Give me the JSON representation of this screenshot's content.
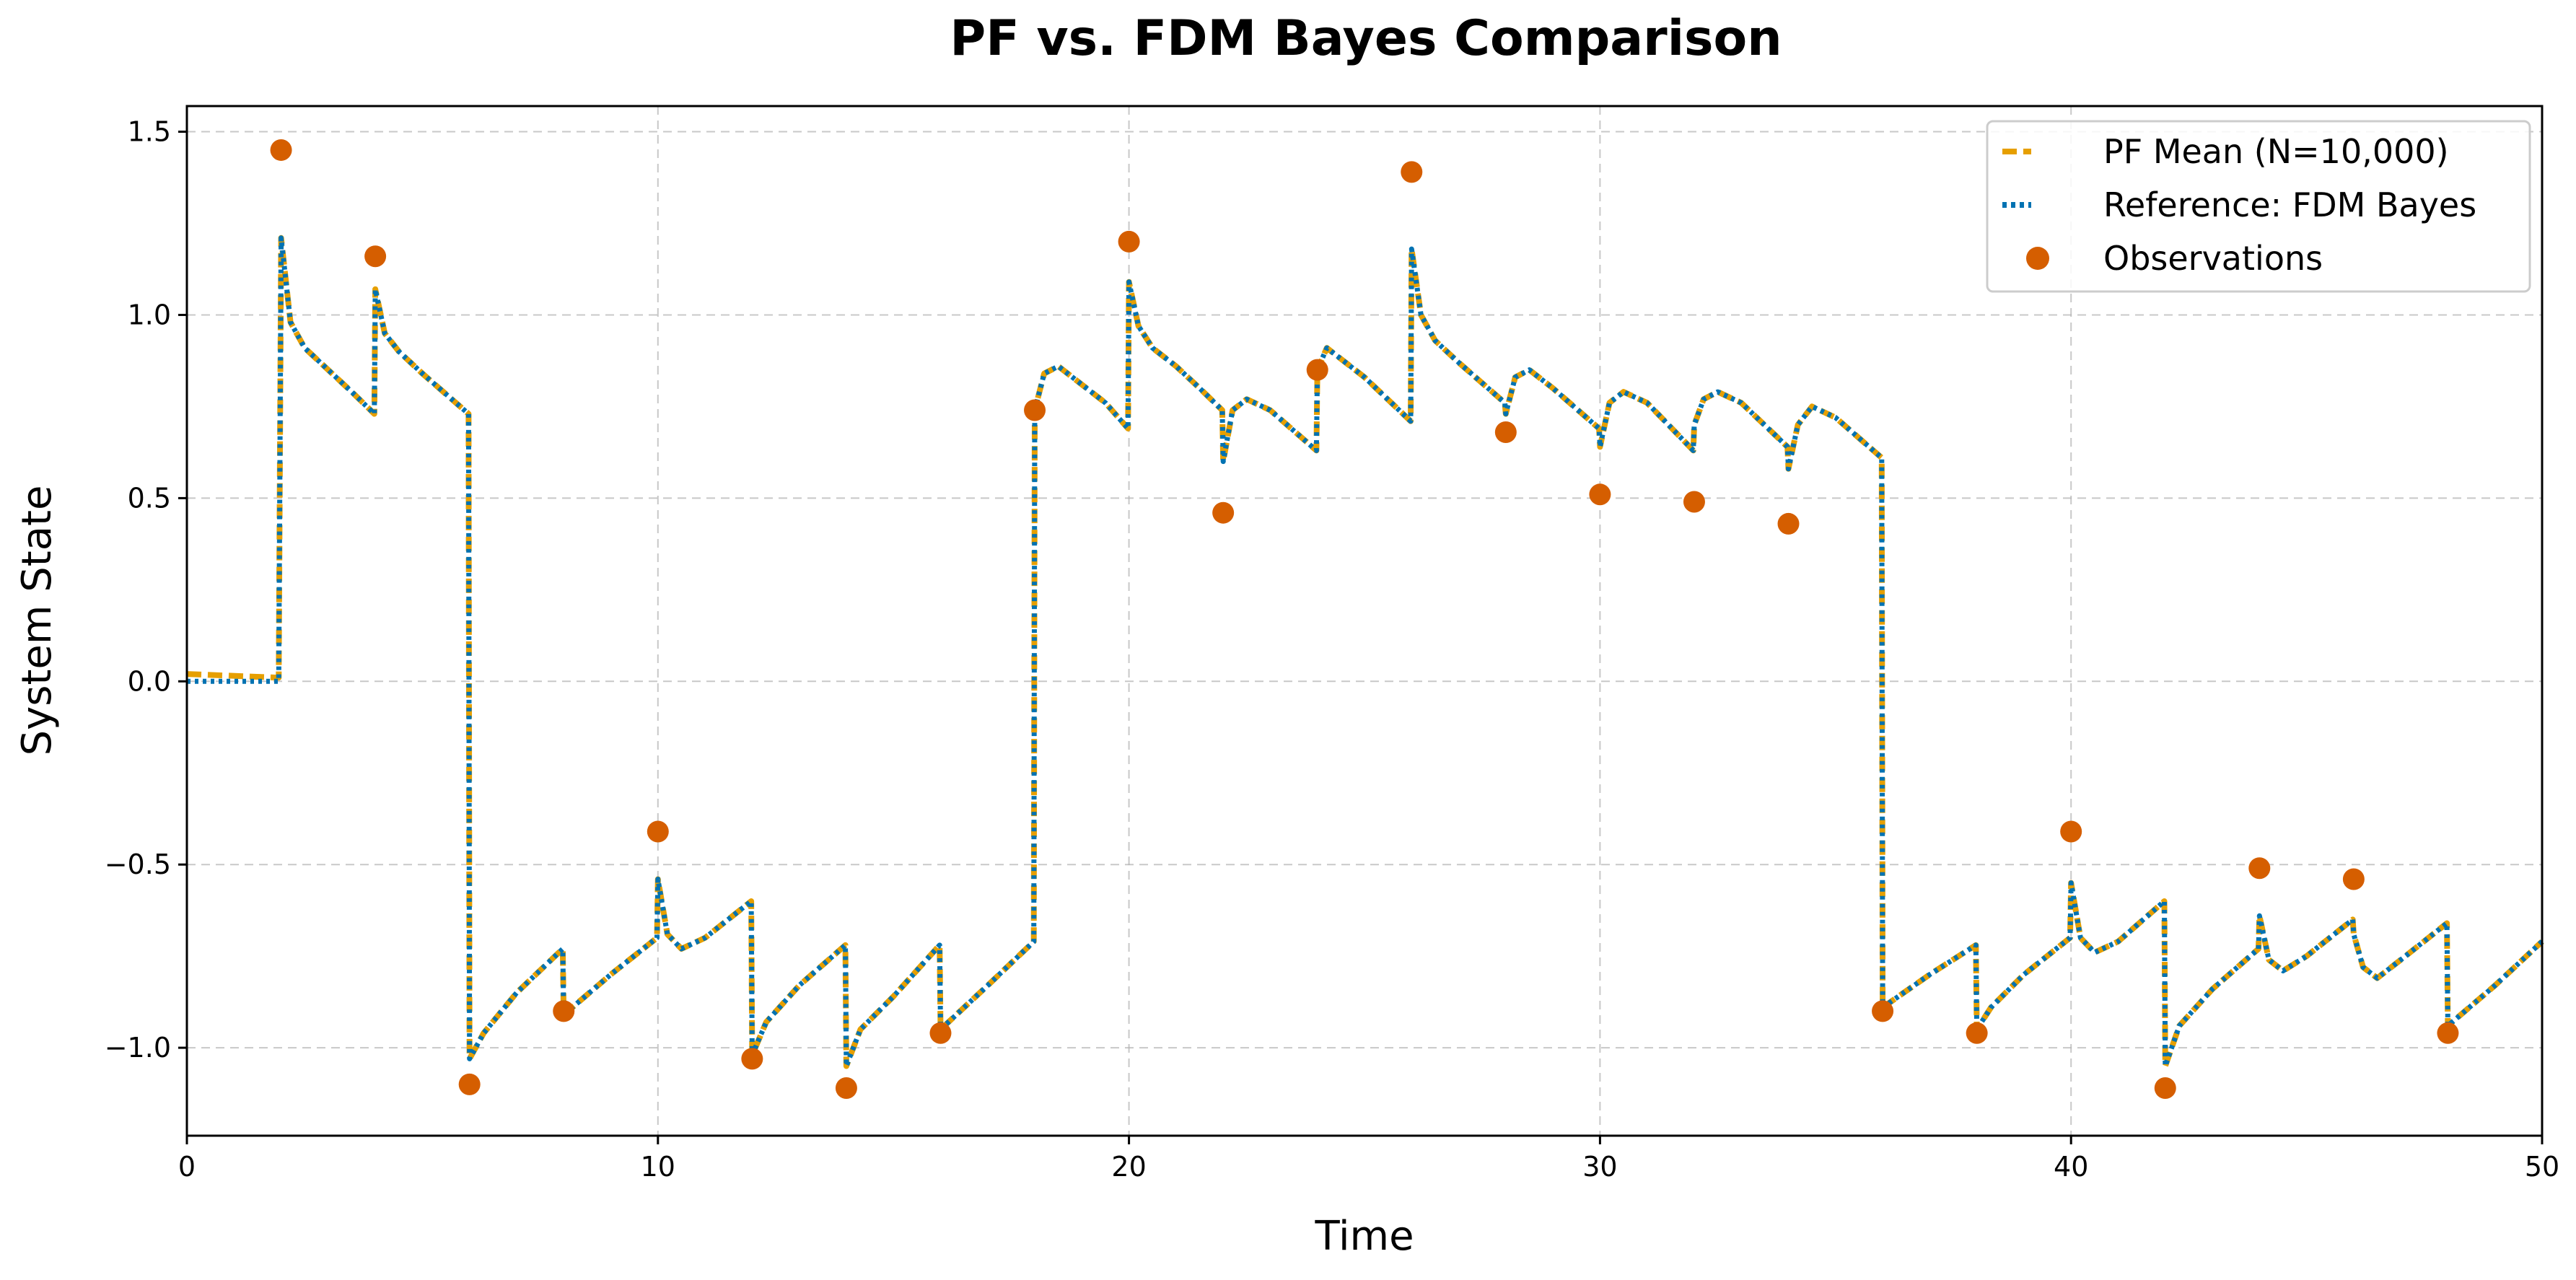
{
  "chart_data": {
    "type": "line",
    "title": "PF vs. FDM Bayes Comparison",
    "xlabel": "Time",
    "ylabel": "System State",
    "xlim": [
      0,
      50
    ],
    "ylim": [
      -1.24,
      1.57
    ],
    "grid": true,
    "legend_position": "top-right",
    "x_ticks": [
      0,
      10,
      20,
      30,
      40,
      50
    ],
    "x_tick_labels": [
      "0",
      "10",
      "20",
      "30",
      "40",
      "50"
    ],
    "y_ticks": [
      -1.0,
      -0.5,
      0.0,
      0.5,
      1.0,
      1.5
    ],
    "y_tick_labels": [
      "−1.0",
      "−0.5",
      "0.0",
      "0.5",
      "1.0",
      "1.5"
    ],
    "series": [
      {
        "name": "PF Mean (N=10,000)",
        "style": "dashed",
        "color": "#E69F00",
        "points": [
          [
            0,
            0.02
          ],
          [
            1.95,
            0.01
          ],
          [
            2.0,
            1.21
          ],
          [
            2.2,
            0.98
          ],
          [
            2.5,
            0.91
          ],
          [
            3.0,
            0.85
          ],
          [
            3.5,
            0.79
          ],
          [
            3.98,
            0.73
          ],
          [
            4.0,
            1.07
          ],
          [
            4.2,
            0.95
          ],
          [
            4.5,
            0.9
          ],
          [
            5.0,
            0.84
          ],
          [
            5.98,
            0.73
          ],
          [
            6.0,
            -1.03
          ],
          [
            6.3,
            -0.96
          ],
          [
            7.0,
            -0.85
          ],
          [
            7.98,
            -0.73
          ],
          [
            8.0,
            -0.91
          ],
          [
            9.0,
            -0.8
          ],
          [
            9.98,
            -0.7
          ],
          [
            10.0,
            -0.54
          ],
          [
            10.2,
            -0.69
          ],
          [
            10.5,
            -0.73
          ],
          [
            11.0,
            -0.7
          ],
          [
            11.98,
            -0.6
          ],
          [
            12.0,
            -1.02
          ],
          [
            12.3,
            -0.93
          ],
          [
            13.0,
            -0.83
          ],
          [
            13.98,
            -0.72
          ],
          [
            14.0,
            -1.05
          ],
          [
            14.3,
            -0.95
          ],
          [
            15.0,
            -0.86
          ],
          [
            15.98,
            -0.72
          ],
          [
            16.0,
            -0.95
          ],
          [
            17.0,
            -0.83
          ],
          [
            17.98,
            -0.71
          ],
          [
            18.0,
            0.74
          ],
          [
            18.2,
            0.84
          ],
          [
            18.5,
            0.86
          ],
          [
            19.0,
            0.81
          ],
          [
            19.5,
            0.76
          ],
          [
            19.98,
            0.69
          ],
          [
            20.0,
            1.09
          ],
          [
            20.2,
            0.97
          ],
          [
            20.5,
            0.91
          ],
          [
            21.0,
            0.86
          ],
          [
            21.5,
            0.8
          ],
          [
            21.98,
            0.74
          ],
          [
            22.0,
            0.6
          ],
          [
            22.2,
            0.74
          ],
          [
            22.5,
            0.77
          ],
          [
            23.0,
            0.74
          ],
          [
            23.98,
            0.63
          ],
          [
            24.0,
            0.85
          ],
          [
            24.2,
            0.91
          ],
          [
            25.0,
            0.83
          ],
          [
            25.98,
            0.71
          ],
          [
            26.0,
            1.18
          ],
          [
            26.2,
            1.0
          ],
          [
            26.5,
            0.93
          ],
          [
            27.0,
            0.87
          ],
          [
            27.98,
            0.76
          ],
          [
            28.0,
            0.73
          ],
          [
            28.2,
            0.83
          ],
          [
            28.5,
            0.85
          ],
          [
            29.0,
            0.8
          ],
          [
            29.98,
            0.69
          ],
          [
            30.0,
            0.64
          ],
          [
            30.2,
            0.76
          ],
          [
            30.5,
            0.79
          ],
          [
            31.0,
            0.76
          ],
          [
            31.98,
            0.63
          ],
          [
            32.0,
            0.7
          ],
          [
            32.2,
            0.77
          ],
          [
            32.5,
            0.79
          ],
          [
            33.0,
            0.76
          ],
          [
            33.98,
            0.64
          ],
          [
            34.0,
            0.58
          ],
          [
            34.2,
            0.7
          ],
          [
            34.5,
            0.75
          ],
          [
            35.0,
            0.72
          ],
          [
            35.98,
            0.61
          ],
          [
            36.0,
            -0.89
          ],
          [
            37.0,
            -0.8
          ],
          [
            37.98,
            -0.72
          ],
          [
            38.0,
            -0.95
          ],
          [
            38.3,
            -0.89
          ],
          [
            39.0,
            -0.8
          ],
          [
            39.98,
            -0.7
          ],
          [
            40.0,
            -0.55
          ],
          [
            40.2,
            -0.7
          ],
          [
            40.5,
            -0.74
          ],
          [
            41.0,
            -0.71
          ],
          [
            41.98,
            -0.6
          ],
          [
            42.0,
            -1.05
          ],
          [
            42.3,
            -0.94
          ],
          [
            43.0,
            -0.84
          ],
          [
            43.98,
            -0.73
          ],
          [
            44.0,
            -0.64
          ],
          [
            44.2,
            -0.76
          ],
          [
            44.5,
            -0.79
          ],
          [
            45.0,
            -0.75
          ],
          [
            45.98,
            -0.65
          ],
          [
            46.0,
            -0.69
          ],
          [
            46.2,
            -0.78
          ],
          [
            46.5,
            -0.81
          ],
          [
            47.0,
            -0.76
          ],
          [
            47.98,
            -0.66
          ],
          [
            48.0,
            -0.94
          ],
          [
            49.0,
            -0.83
          ],
          [
            50.0,
            -0.71
          ]
        ]
      },
      {
        "name": "Reference: FDM Bayes",
        "style": "dotted",
        "color": "#0072B2",
        "points": [
          [
            0,
            0.0
          ],
          [
            1.95,
            0.0
          ],
          [
            2.0,
            1.21
          ],
          [
            2.2,
            0.98
          ],
          [
            2.5,
            0.91
          ],
          [
            3.0,
            0.85
          ],
          [
            3.5,
            0.79
          ],
          [
            3.98,
            0.73
          ],
          [
            4.0,
            1.07
          ],
          [
            4.2,
            0.95
          ],
          [
            4.5,
            0.9
          ],
          [
            5.0,
            0.84
          ],
          [
            5.98,
            0.73
          ],
          [
            6.0,
            -1.03
          ],
          [
            6.3,
            -0.96
          ],
          [
            7.0,
            -0.85
          ],
          [
            7.98,
            -0.73
          ],
          [
            8.0,
            -0.91
          ],
          [
            9.0,
            -0.8
          ],
          [
            9.98,
            -0.7
          ],
          [
            10.0,
            -0.54
          ],
          [
            10.2,
            -0.69
          ],
          [
            10.5,
            -0.73
          ],
          [
            11.0,
            -0.7
          ],
          [
            11.98,
            -0.6
          ],
          [
            12.0,
            -1.02
          ],
          [
            12.3,
            -0.93
          ],
          [
            13.0,
            -0.83
          ],
          [
            13.98,
            -0.72
          ],
          [
            14.0,
            -1.05
          ],
          [
            14.3,
            -0.95
          ],
          [
            15.0,
            -0.86
          ],
          [
            15.98,
            -0.72
          ],
          [
            16.0,
            -0.95
          ],
          [
            17.0,
            -0.83
          ],
          [
            17.98,
            -0.71
          ],
          [
            18.0,
            0.74
          ],
          [
            18.2,
            0.84
          ],
          [
            18.5,
            0.86
          ],
          [
            19.0,
            0.81
          ],
          [
            19.5,
            0.76
          ],
          [
            19.98,
            0.69
          ],
          [
            20.0,
            1.09
          ],
          [
            20.2,
            0.97
          ],
          [
            20.5,
            0.91
          ],
          [
            21.0,
            0.86
          ],
          [
            21.5,
            0.8
          ],
          [
            21.98,
            0.74
          ],
          [
            22.0,
            0.6
          ],
          [
            22.2,
            0.74
          ],
          [
            22.5,
            0.77
          ],
          [
            23.0,
            0.74
          ],
          [
            23.98,
            0.63
          ],
          [
            24.0,
            0.85
          ],
          [
            24.2,
            0.91
          ],
          [
            25.0,
            0.83
          ],
          [
            25.98,
            0.71
          ],
          [
            26.0,
            1.18
          ],
          [
            26.2,
            1.0
          ],
          [
            26.5,
            0.93
          ],
          [
            27.0,
            0.87
          ],
          [
            27.98,
            0.76
          ],
          [
            28.0,
            0.73
          ],
          [
            28.2,
            0.83
          ],
          [
            28.5,
            0.85
          ],
          [
            29.0,
            0.8
          ],
          [
            29.98,
            0.69
          ],
          [
            30.0,
            0.64
          ],
          [
            30.2,
            0.76
          ],
          [
            30.5,
            0.79
          ],
          [
            31.0,
            0.76
          ],
          [
            31.98,
            0.63
          ],
          [
            32.0,
            0.7
          ],
          [
            32.2,
            0.77
          ],
          [
            32.5,
            0.79
          ],
          [
            33.0,
            0.76
          ],
          [
            33.98,
            0.64
          ],
          [
            34.0,
            0.58
          ],
          [
            34.2,
            0.7
          ],
          [
            34.5,
            0.75
          ],
          [
            35.0,
            0.72
          ],
          [
            35.98,
            0.61
          ],
          [
            36.0,
            -0.89
          ],
          [
            37.0,
            -0.8
          ],
          [
            37.98,
            -0.72
          ],
          [
            38.0,
            -0.95
          ],
          [
            38.3,
            -0.89
          ],
          [
            39.0,
            -0.8
          ],
          [
            39.98,
            -0.7
          ],
          [
            40.0,
            -0.55
          ],
          [
            40.2,
            -0.7
          ],
          [
            40.5,
            -0.74
          ],
          [
            41.0,
            -0.71
          ],
          [
            41.98,
            -0.6
          ],
          [
            42.0,
            -1.05
          ],
          [
            42.3,
            -0.94
          ],
          [
            43.0,
            -0.84
          ],
          [
            43.98,
            -0.73
          ],
          [
            44.0,
            -0.64
          ],
          [
            44.2,
            -0.76
          ],
          [
            44.5,
            -0.79
          ],
          [
            45.0,
            -0.75
          ],
          [
            45.98,
            -0.65
          ],
          [
            46.0,
            -0.69
          ],
          [
            46.2,
            -0.78
          ],
          [
            46.5,
            -0.81
          ],
          [
            47.0,
            -0.76
          ],
          [
            47.98,
            -0.66
          ],
          [
            48.0,
            -0.94
          ],
          [
            49.0,
            -0.83
          ],
          [
            50.0,
            -0.71
          ]
        ]
      }
    ],
    "observations": {
      "name": "Observations",
      "color": "#D55E00",
      "x": [
        2,
        4,
        6,
        8,
        10,
        12,
        14,
        16,
        18,
        20,
        22,
        24,
        26,
        28,
        30,
        32,
        34,
        36,
        38,
        40,
        42,
        44,
        46,
        48
      ],
      "y": [
        1.45,
        1.16,
        -1.1,
        -0.9,
        -0.41,
        -1.03,
        -1.11,
        -0.96,
        0.74,
        1.2,
        0.46,
        0.85,
        1.39,
        0.68,
        0.51,
        0.49,
        0.43,
        -0.9,
        -0.96,
        -0.41,
        -1.11,
        -0.51,
        -0.54,
        -0.96
      ]
    }
  }
}
